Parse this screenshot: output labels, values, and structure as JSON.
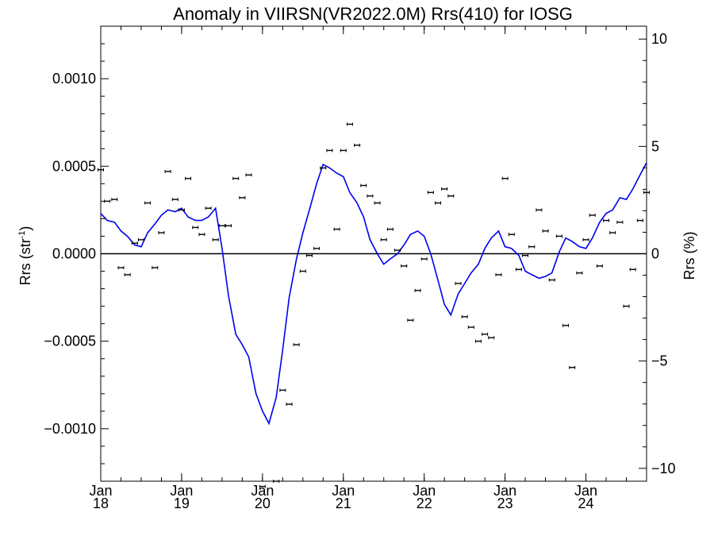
{
  "chart_data": {
    "type": "scatter",
    "title": "Anomaly in VIIRSN(VR2022.0M) Rrs(410) for IOSG",
    "ylabel_left": "Rrs (str",
    "ylabel_left_sup": "-1",
    "ylabel_left_close": ")",
    "ylabel_right": "Rrs (%)",
    "xlim": [
      2018.0,
      2024.75
    ],
    "ylim_left": [
      -0.0013,
      0.0013
    ],
    "ylim_right": [
      -10.6,
      10.6
    ],
    "x_ticks": [
      {
        "value": 2018.0,
        "month": "Jan",
        "year": "18"
      },
      {
        "value": 2019.0,
        "month": "Jan",
        "year": "19"
      },
      {
        "value": 2020.0,
        "month": "Jan",
        "year": "20"
      },
      {
        "value": 2021.0,
        "month": "Jan",
        "year": "21"
      },
      {
        "value": 2022.0,
        "month": "Jan",
        "year": "22"
      },
      {
        "value": 2023.0,
        "month": "Jan",
        "year": "23"
      },
      {
        "value": 2024.0,
        "month": "Jan",
        "year": "24"
      }
    ],
    "y_ticks_left": [
      {
        "value": 0.001,
        "label": "0.0010"
      },
      {
        "value": 0.0005,
        "label": "0.0005"
      },
      {
        "value": 0.0,
        "label": "0.0000"
      },
      {
        "value": -0.0005,
        "label": "−0.0005"
      },
      {
        "value": -0.001,
        "label": "−0.0010"
      }
    ],
    "y_ticks_right": [
      {
        "value": 10,
        "label": "10"
      },
      {
        "value": 5,
        "label": "5"
      },
      {
        "value": 0,
        "label": "0"
      },
      {
        "value": -5,
        "label": "−5"
      },
      {
        "value": -10,
        "label": "−10"
      }
    ],
    "zero_line": true,
    "series": [
      {
        "kind": "points",
        "color": "#000000",
        "x": [
          2018.0,
          2018.08,
          2018.17,
          2018.25,
          2018.33,
          2018.42,
          2018.5,
          2018.58,
          2018.67,
          2018.75,
          2018.83,
          2018.92,
          2019.0,
          2019.08,
          2019.17,
          2019.25,
          2019.33,
          2019.42,
          2019.5,
          2019.58,
          2019.67,
          2019.75,
          2019.83,
          2019.92,
          2020.0,
          2020.08,
          2020.17,
          2020.25,
          2020.33,
          2020.42,
          2020.5,
          2020.58,
          2020.67,
          2020.75,
          2020.83,
          2020.92,
          2021.0,
          2021.08,
          2021.17,
          2021.25,
          2021.33,
          2021.42,
          2021.5,
          2021.58,
          2021.67,
          2021.75,
          2021.83,
          2021.92,
          2022.0,
          2022.08,
          2022.17,
          2022.25,
          2022.33,
          2022.42,
          2022.5,
          2022.58,
          2022.67,
          2022.75,
          2022.83,
          2022.92,
          2023.0,
          2023.08,
          2023.17,
          2023.25,
          2023.33,
          2023.42,
          2023.5,
          2023.58,
          2023.67,
          2023.75,
          2023.83,
          2023.92,
          2024.0,
          2024.08,
          2024.17,
          2024.25,
          2024.33,
          2024.42,
          2024.5,
          2024.58,
          2024.67,
          2024.75
        ],
        "y": [
          0.00048,
          0.0003,
          0.00031,
          -8e-05,
          -0.00012,
          6e-05,
          8e-05,
          0.00029,
          -8e-05,
          0.00012,
          0.00047,
          0.00031,
          0.00025,
          0.00043,
          0.00015,
          0.00011,
          0.00026,
          8e-05,
          0.00016,
          0.00016,
          0.00043,
          0.00032,
          0.00045,
          null,
          -0.00133,
          null,
          -0.0013,
          -0.00078,
          -0.00086,
          -0.00052,
          -0.0001,
          -1e-05,
          3e-05,
          0.00049,
          0.00059,
          0.00014,
          0.00059,
          0.00074,
          0.00062,
          0.00039,
          0.00033,
          0.00029,
          8e-05,
          0.00014,
          2e-05,
          -7e-05,
          -0.00038,
          -0.00021,
          -3e-05,
          0.00035,
          0.00029,
          0.00037,
          0.00033,
          -0.00017,
          -0.00036,
          -0.00042,
          -0.0005,
          -0.00046,
          -0.00048,
          -0.00012,
          0.00043,
          0.00011,
          -9e-05,
          -1e-05,
          4e-05,
          0.00025,
          0.00013,
          -0.00015,
          0.0001,
          -0.00041,
          -0.00065,
          -0.00011,
          8e-05,
          0.00022,
          -7e-05,
          0.00019,
          0.00012,
          0.00018,
          -0.0003,
          -9e-05,
          0.00019,
          0.00035
        ]
      },
      {
        "kind": "line",
        "color": "#0000ee",
        "x": [
          2018.0,
          2018.08,
          2018.17,
          2018.25,
          2018.33,
          2018.42,
          2018.5,
          2018.58,
          2018.67,
          2018.75,
          2018.83,
          2018.92,
          2019.0,
          2019.08,
          2019.17,
          2019.25,
          2019.33,
          2019.42,
          2019.5,
          2019.58,
          2019.67,
          2019.75,
          2019.83,
          2019.92,
          2020.0,
          2020.08,
          2020.17,
          2020.25,
          2020.33,
          2020.42,
          2020.5,
          2020.58,
          2020.67,
          2020.75,
          2020.83,
          2020.92,
          2021.0,
          2021.08,
          2021.17,
          2021.25,
          2021.33,
          2021.42,
          2021.5,
          2021.58,
          2021.67,
          2021.75,
          2021.83,
          2021.92,
          2022.0,
          2022.08,
          2022.17,
          2022.25,
          2022.33,
          2022.42,
          2022.5,
          2022.58,
          2022.67,
          2022.75,
          2022.83,
          2022.92,
          2023.0,
          2023.08,
          2023.17,
          2023.25,
          2023.33,
          2023.42,
          2023.5,
          2023.58,
          2023.67,
          2023.75,
          2023.83,
          2023.92,
          2024.0,
          2024.08,
          2024.17,
          2024.25,
          2024.33,
          2024.42,
          2024.5,
          2024.58,
          2024.67,
          2024.75
        ],
        "y": [
          0.00023,
          0.00019,
          0.00018,
          0.00013,
          0.0001,
          5e-05,
          4e-05,
          0.00012,
          0.00017,
          0.00022,
          0.00025,
          0.00024,
          0.00026,
          0.00021,
          0.00019,
          0.00019,
          0.00021,
          0.00026,
          3e-05,
          -0.00024,
          -0.00046,
          -0.00052,
          -0.00059,
          -0.0008,
          -0.0009,
          -0.00097,
          -0.00082,
          -0.00055,
          -0.00025,
          -3e-05,
          0.00012,
          0.00025,
          0.0004,
          0.00051,
          0.00049,
          0.00046,
          0.00044,
          0.00035,
          0.00029,
          0.00021,
          8e-05,
          0.0,
          -6e-05,
          -3e-05,
          0.0,
          5e-05,
          0.00011,
          0.00013,
          0.0001,
          0.0,
          -0.00015,
          -0.00029,
          -0.00035,
          -0.00023,
          -0.00017,
          -0.00011,
          -6e-05,
          3e-05,
          9e-05,
          0.00013,
          4e-05,
          3e-05,
          -1e-05,
          -0.0001,
          -0.00012,
          -0.00014,
          -0.00013,
          -0.00011,
          1e-05,
          9e-05,
          7e-05,
          4e-05,
          3e-05,
          9e-05,
          0.00018,
          0.00023,
          0.00025,
          0.00032,
          0.00031,
          0.00037,
          0.00045,
          0.00052
        ]
      }
    ]
  }
}
